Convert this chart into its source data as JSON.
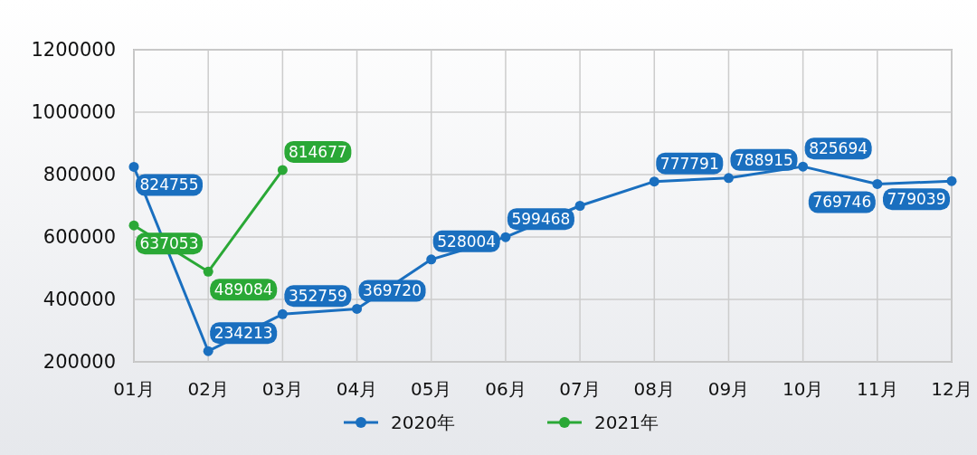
{
  "chart_data": {
    "type": "line",
    "categories": [
      "01月",
      "02月",
      "03月",
      "04月",
      "05月",
      "06月",
      "07月",
      "08月",
      "09月",
      "10月",
      "11月",
      "12月"
    ],
    "series": [
      {
        "name": "2020年",
        "color": "#1a6fbf",
        "values": [
          824755,
          234213,
          352759,
          369720,
          528004,
          599468,
          700000,
          777791,
          788915,
          825694,
          769746,
          779039
        ],
        "value_labels": [
          "824755",
          "234213",
          "352759",
          "369720",
          "528004",
          "599468",
          null,
          "777791",
          "788915",
          "825694",
          "769746",
          "779039"
        ]
      },
      {
        "name": "2021年",
        "color": "#2aa836",
        "values": [
          637053,
          489084,
          814677,
          null,
          null,
          null,
          null,
          null,
          null,
          null,
          null,
          null
        ],
        "value_labels": [
          "637053",
          "489084",
          "814677",
          null,
          null,
          null,
          null,
          null,
          null,
          null,
          null,
          null
        ]
      }
    ],
    "ylim": [
      200000,
      1200000
    ],
    "yticks": [
      200000,
      400000,
      600000,
      800000,
      1000000,
      1200000
    ],
    "grid": true,
    "legend": "bottom",
    "marker": "circle"
  }
}
